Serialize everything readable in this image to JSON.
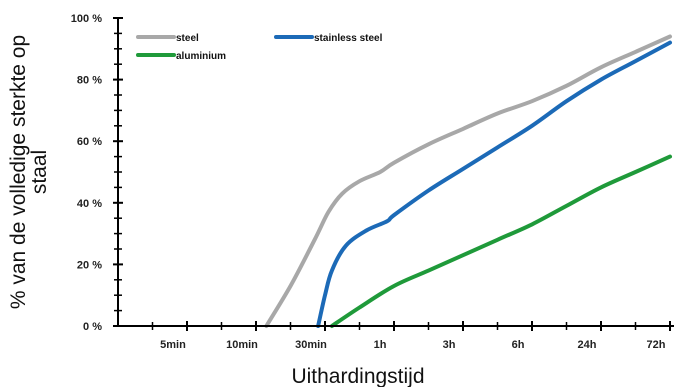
{
  "chart_data": {
    "type": "line",
    "title": "",
    "xlabel": "Uithardingstijd",
    "ylabel_line1": "% van de volledige sterkte op",
    "ylabel_line2": "staal",
    "ylim": [
      0,
      100
    ],
    "yticks": [
      {
        "value": 0,
        "label": "0 %"
      },
      {
        "value": 20,
        "label": "20 %"
      },
      {
        "value": 40,
        "label": "40 %"
      },
      {
        "value": 60,
        "label": "60 %"
      },
      {
        "value": 80,
        "label": "80 %"
      },
      {
        "value": 100,
        "label": "100 %"
      }
    ],
    "categories": [
      "5min",
      "10min",
      "30min",
      "1h",
      "3h",
      "6h",
      "24h",
      "72h"
    ],
    "xlim": [
      0,
      8
    ],
    "legend_position": "top-left",
    "grid": false,
    "series": [
      {
        "name": "steel",
        "color": "#a8a8a8",
        "points": [
          [
            2.15,
            0
          ],
          [
            2.5,
            13
          ],
          [
            2.85,
            28
          ],
          [
            3.05,
            37
          ],
          [
            3.25,
            43
          ],
          [
            3.5,
            47
          ],
          [
            3.8,
            50
          ],
          [
            4.0,
            53
          ],
          [
            4.5,
            59
          ],
          [
            5.0,
            64
          ],
          [
            5.5,
            69
          ],
          [
            6.0,
            73
          ],
          [
            6.5,
            78
          ],
          [
            7.0,
            84
          ],
          [
            7.5,
            89
          ],
          [
            8.0,
            94
          ]
        ]
      },
      {
        "name": "stainless steel",
        "color": "#1c6ab7",
        "points": [
          [
            2.9,
            0
          ],
          [
            3.0,
            10
          ],
          [
            3.1,
            18
          ],
          [
            3.3,
            26
          ],
          [
            3.6,
            31
          ],
          [
            3.9,
            34
          ],
          [
            4.0,
            36
          ],
          [
            4.5,
            44
          ],
          [
            5.0,
            51
          ],
          [
            5.5,
            58
          ],
          [
            6.0,
            65
          ],
          [
            6.5,
            73
          ],
          [
            7.0,
            80
          ],
          [
            7.5,
            86
          ],
          [
            8.0,
            92
          ]
        ]
      },
      {
        "name": "aluminium",
        "color": "#1f9a3a",
        "points": [
          [
            3.1,
            0
          ],
          [
            3.5,
            6
          ],
          [
            4.0,
            13
          ],
          [
            4.5,
            18
          ],
          [
            5.0,
            23
          ],
          [
            5.5,
            28
          ],
          [
            6.0,
            33
          ],
          [
            6.5,
            39
          ],
          [
            7.0,
            45
          ],
          [
            7.5,
            50
          ],
          [
            8.0,
            55
          ]
        ]
      }
    ]
  }
}
